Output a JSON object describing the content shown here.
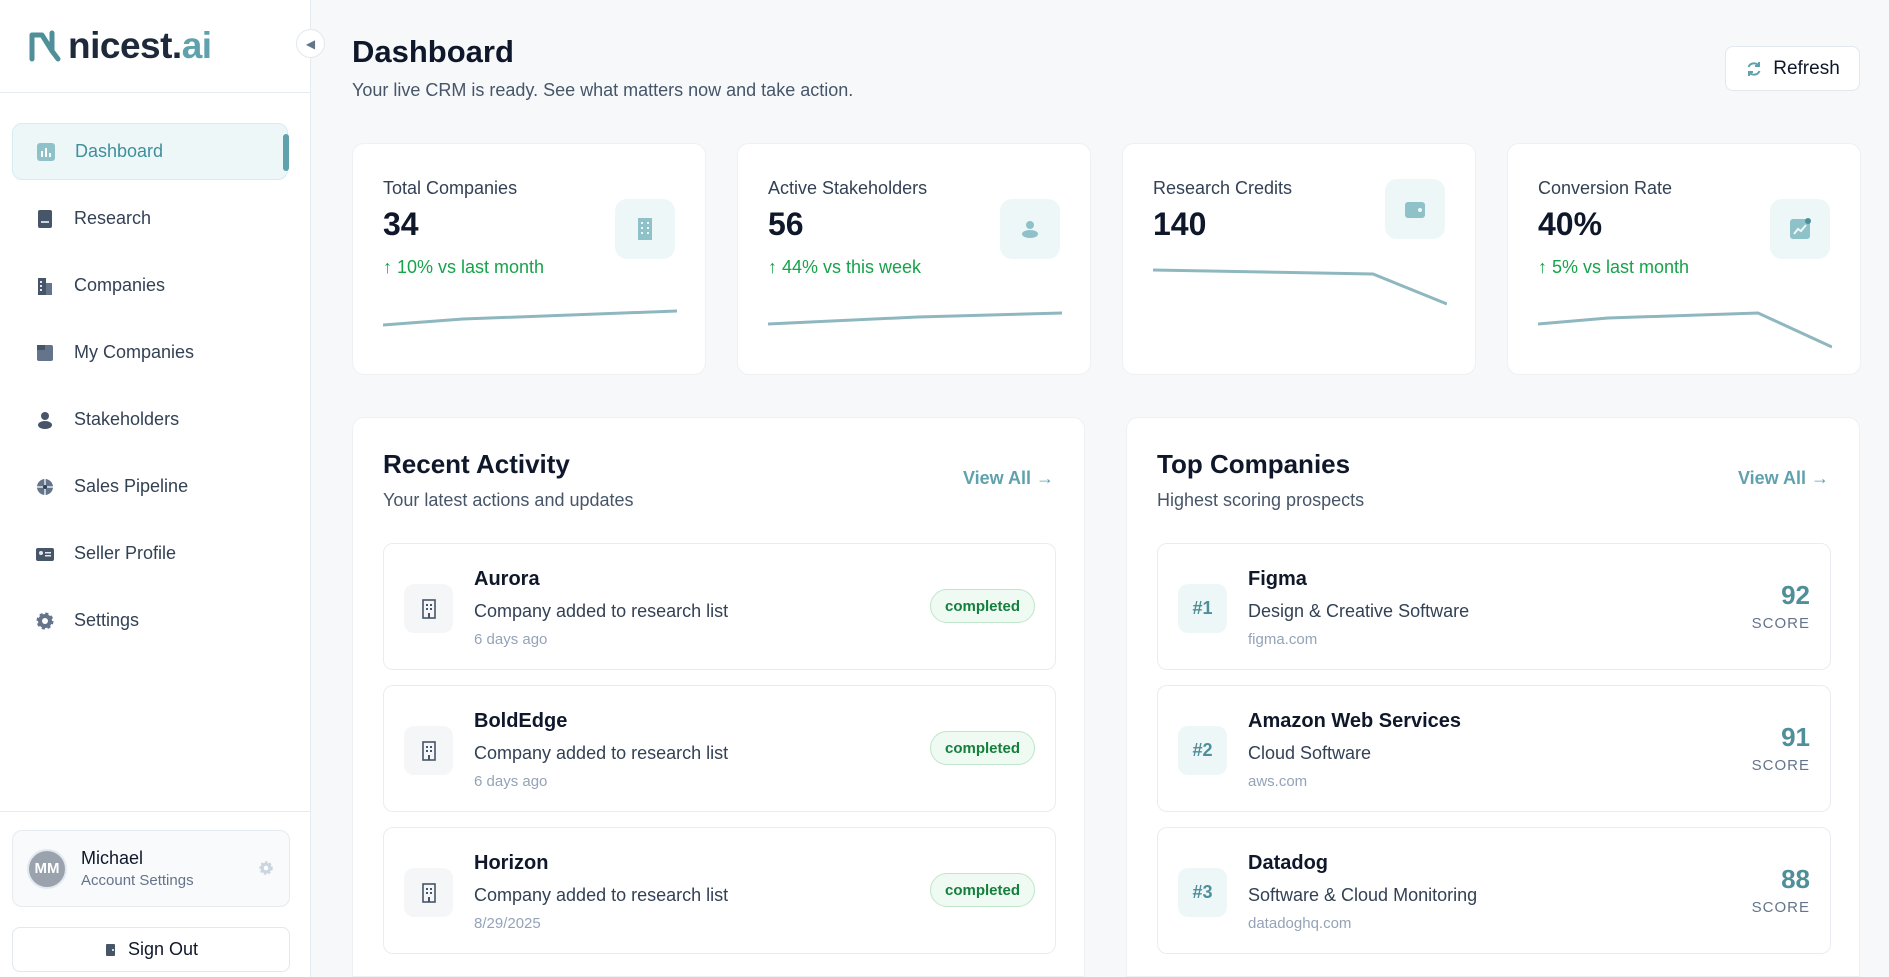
{
  "brand": {
    "name": "nicest.",
    "suffix": "ai"
  },
  "nav": {
    "items": [
      {
        "label": "Dashboard",
        "icon": "chart-bar-icon",
        "active": true
      },
      {
        "label": "Research",
        "icon": "book-icon"
      },
      {
        "label": "Companies",
        "icon": "building-icon"
      },
      {
        "label": "My Companies",
        "icon": "folder-icon"
      },
      {
        "label": "Stakeholders",
        "icon": "user-icon"
      },
      {
        "label": "Sales Pipeline",
        "icon": "target-icon"
      },
      {
        "label": "Seller Profile",
        "icon": "id-card-icon"
      },
      {
        "label": "Settings",
        "icon": "gear-icon"
      }
    ]
  },
  "user": {
    "initials": "MM",
    "name": "Michael",
    "subtitle": "Account Settings"
  },
  "signout_label": "Sign Out",
  "header": {
    "title": "Dashboard",
    "subtitle": "Your live CRM is ready. See what matters now and take action.",
    "refresh_label": "Refresh"
  },
  "stats": [
    {
      "label": "Total Companies",
      "value": "34",
      "delta": "↑ 10% vs last month",
      "icon": "building-icon"
    },
    {
      "label": "Active Stakeholders",
      "value": "56",
      "delta": "↑ 44% vs this week",
      "icon": "users-icon"
    },
    {
      "label": "Research Credits",
      "value": "140",
      "delta": "",
      "icon": "wallet-icon"
    },
    {
      "label": "Conversion Rate",
      "value": "40%",
      "delta": "↑ 5% vs last month",
      "icon": "trend-icon"
    }
  ],
  "recent_activity": {
    "title": "Recent Activity",
    "subtitle": "Your latest actions and updates",
    "view_all": "View All →",
    "items": [
      {
        "name": "Aurora",
        "desc": "Company added to research list",
        "time": "6 days ago",
        "status": "completed"
      },
      {
        "name": "BoldEdge",
        "desc": "Company added to research list",
        "time": "6 days ago",
        "status": "completed"
      },
      {
        "name": "Horizon",
        "desc": "Company added to research list",
        "time": "8/29/2025",
        "status": "completed"
      }
    ]
  },
  "top_companies": {
    "title": "Top Companies",
    "subtitle": "Highest scoring prospects",
    "view_all": "View All →",
    "items": [
      {
        "rank": "#1",
        "name": "Figma",
        "category": "Design & Creative Software",
        "domain": "figma.com",
        "score": "92",
        "score_label": "SCORE"
      },
      {
        "rank": "#2",
        "name": "Amazon Web Services",
        "category": "Cloud Software",
        "domain": "aws.com",
        "score": "91",
        "score_label": "SCORE"
      },
      {
        "rank": "#3",
        "name": "Datadog",
        "category": "Software & Cloud Monitoring",
        "domain": "datadoghq.com",
        "score": "88",
        "score_label": "SCORE"
      }
    ]
  },
  "colors": {
    "accent": "#5fa1ad",
    "positive": "#16a34a",
    "spark": "#8fb7bf"
  }
}
